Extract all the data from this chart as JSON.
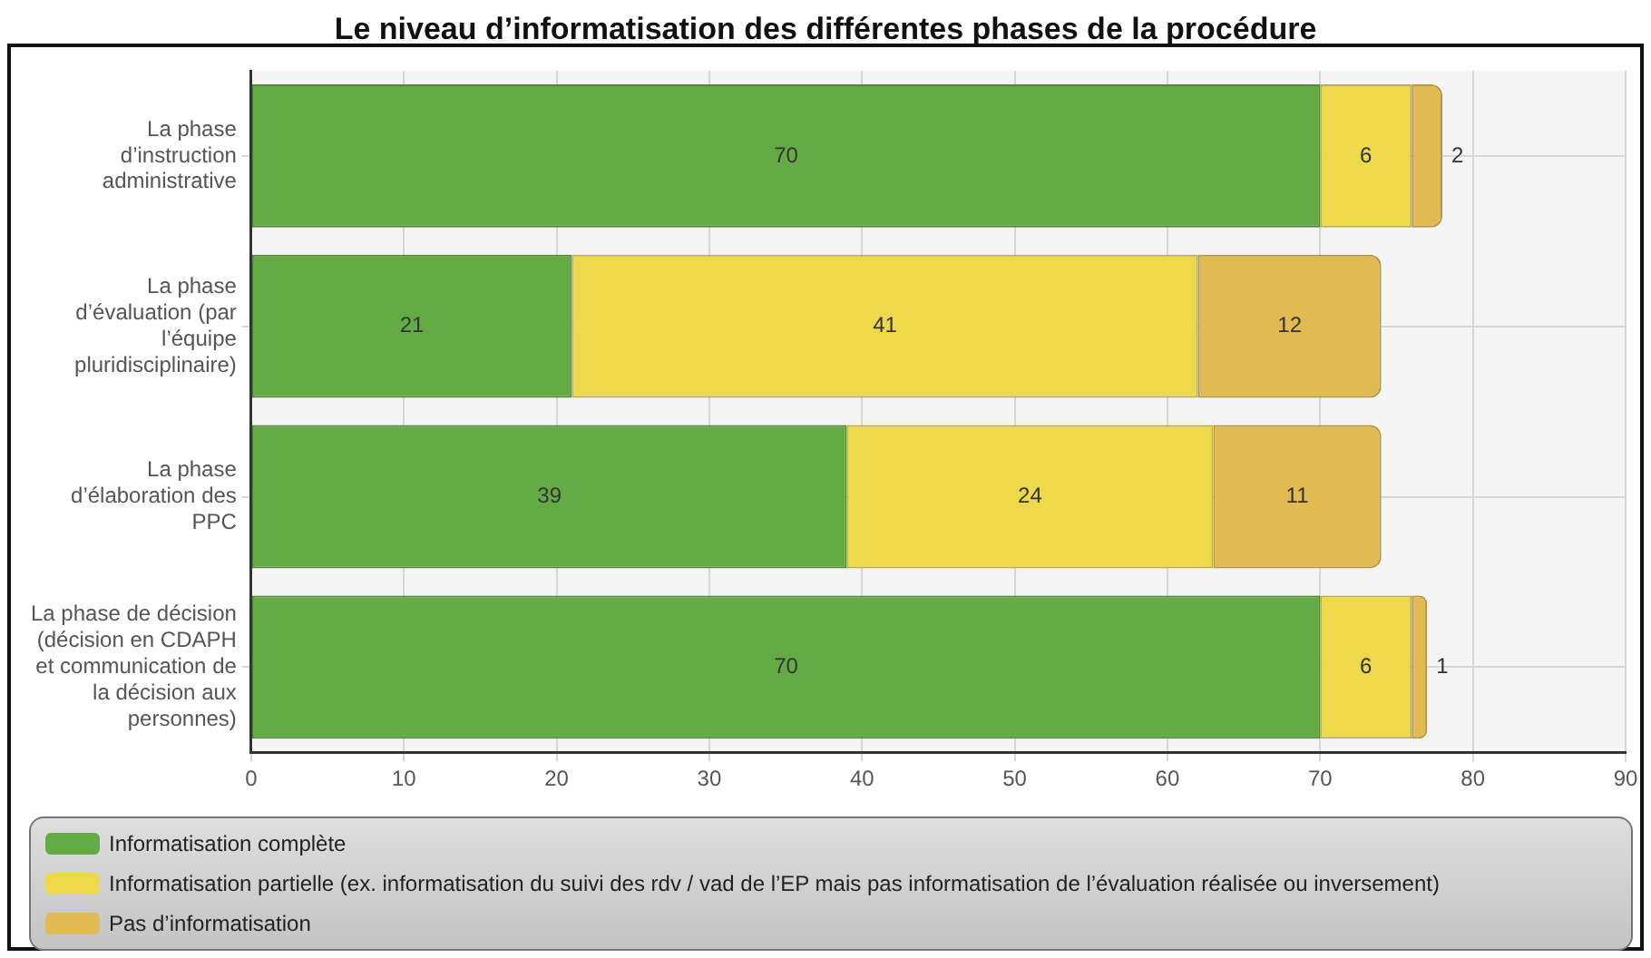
{
  "chart_data": {
    "type": "bar",
    "orientation": "horizontal",
    "stacked": true,
    "title": "Le niveau d’informatisation des différentes phases de la procédure",
    "categories": [
      "La phase d’instruction administrative",
      "La phase d’évaluation (par l’équipe pluridisciplinaire)",
      "La phase d’élaboration des PPC",
      "La phase de décision (décision en CDAPH et communication de la décision aux personnes)"
    ],
    "series": [
      {
        "name": "Informatisation complète",
        "color": "#64ab46",
        "values": [
          70,
          21,
          39,
          70
        ]
      },
      {
        "name": "Informatisation partielle (ex. informatisation du suivi des rdv / vad de l’EP mais pas informatisation de l’évaluation réalisée ou inversement)",
        "color": "#eed94c",
        "values": [
          6,
          41,
          24,
          6
        ]
      },
      {
        "name": "Pas d’informatisation",
        "color": "#e2ba52",
        "values": [
          2,
          12,
          11,
          1
        ]
      }
    ],
    "xlim": [
      0,
      90
    ],
    "xticks": [
      0,
      10,
      20,
      30,
      40,
      50,
      60,
      70,
      80,
      90
    ],
    "grid": true,
    "legend": "bottom",
    "data_labels": true
  }
}
